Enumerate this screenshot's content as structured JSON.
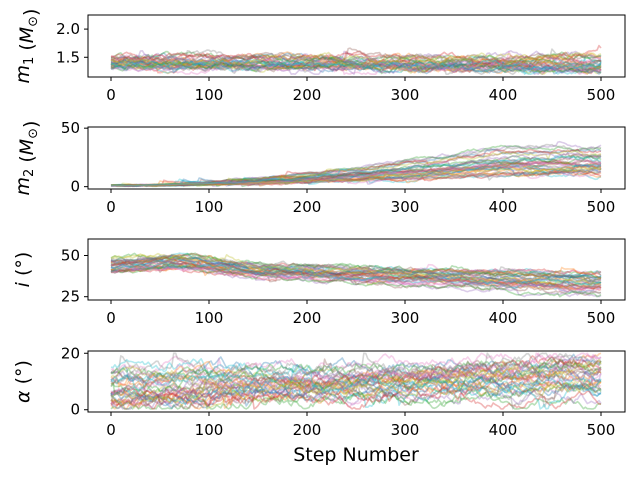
{
  "chart_data": {
    "type": "line",
    "xlabel": "Step Number",
    "x_range": [
      0,
      500
    ],
    "x_ticks": [
      0,
      100,
      200,
      300,
      400,
      500
    ],
    "walker_count": 40,
    "palette": [
      "#1f77b4",
      "#ff7f0e",
      "#2ca02c",
      "#d62728",
      "#9467bd",
      "#8c564b",
      "#e377c2",
      "#7f7f7f",
      "#bcbd22",
      "#17becf"
    ],
    "panels": [
      {
        "name": "m1",
        "ylabel_parts": [
          {
            "t": "m",
            "style": "italic"
          },
          {
            "t": "1",
            "sub": true
          },
          {
            "t": " ("
          },
          {
            "t": "M",
            "style": "italic"
          },
          {
            "t": "⊙",
            "sub": true
          },
          {
            "t": ")"
          }
        ],
        "ylim": [
          1.15,
          2.25
        ],
        "y_ticks": [
          1.5,
          2.0
        ],
        "y_tick_labels": [
          "1.5",
          "2.0"
        ],
        "model": {
          "start": 1.4,
          "start_spread": 0.2,
          "end": 1.4,
          "end_spread": 0.3,
          "low": 1.2,
          "high": 2.2,
          "noise": 0.07
        }
      },
      {
        "name": "m2",
        "ylabel_parts": [
          {
            "t": "m",
            "style": "italic"
          },
          {
            "t": "2",
            "sub": true
          },
          {
            "t": " ("
          },
          {
            "t": "M",
            "style": "italic"
          },
          {
            "t": "⊙",
            "sub": true
          },
          {
            "t": ")"
          }
        ],
        "ylim": [
          -2,
          51
        ],
        "y_ticks": [
          0,
          50
        ],
        "y_tick_labels": [
          "0",
          "50"
        ],
        "model": {
          "start": 1,
          "start_spread": 0.5,
          "end": 22,
          "end_spread": 26,
          "low": 0.3,
          "high": 48,
          "noise": 2.0,
          "grow": true
        }
      },
      {
        "name": "inclination",
        "ylabel_parts": [
          {
            "t": "i",
            "style": "italic"
          },
          {
            "t": " (°)"
          }
        ],
        "ylim": [
          23,
          60
        ],
        "y_ticks": [
          25,
          50
        ],
        "y_tick_labels": [
          "25",
          "50"
        ],
        "model": {
          "start": 44,
          "start_spread": 9,
          "end": 33,
          "end_spread": 14,
          "low": 25,
          "high": 58,
          "noise": 1.6,
          "bump": true
        }
      },
      {
        "name": "alpha",
        "ylabel_parts": [
          {
            "t": "α",
            "style": "italic"
          },
          {
            "t": " (°)"
          }
        ],
        "ylim": [
          -0.8,
          20.8
        ],
        "y_ticks": [
          0,
          20
        ],
        "y_tick_labels": [
          "0",
          "20"
        ],
        "model": {
          "start": 8,
          "start_spread": 14,
          "end": 10,
          "end_spread": 18,
          "low": 0.3,
          "high": 20,
          "noise": 2.4
        }
      }
    ]
  }
}
